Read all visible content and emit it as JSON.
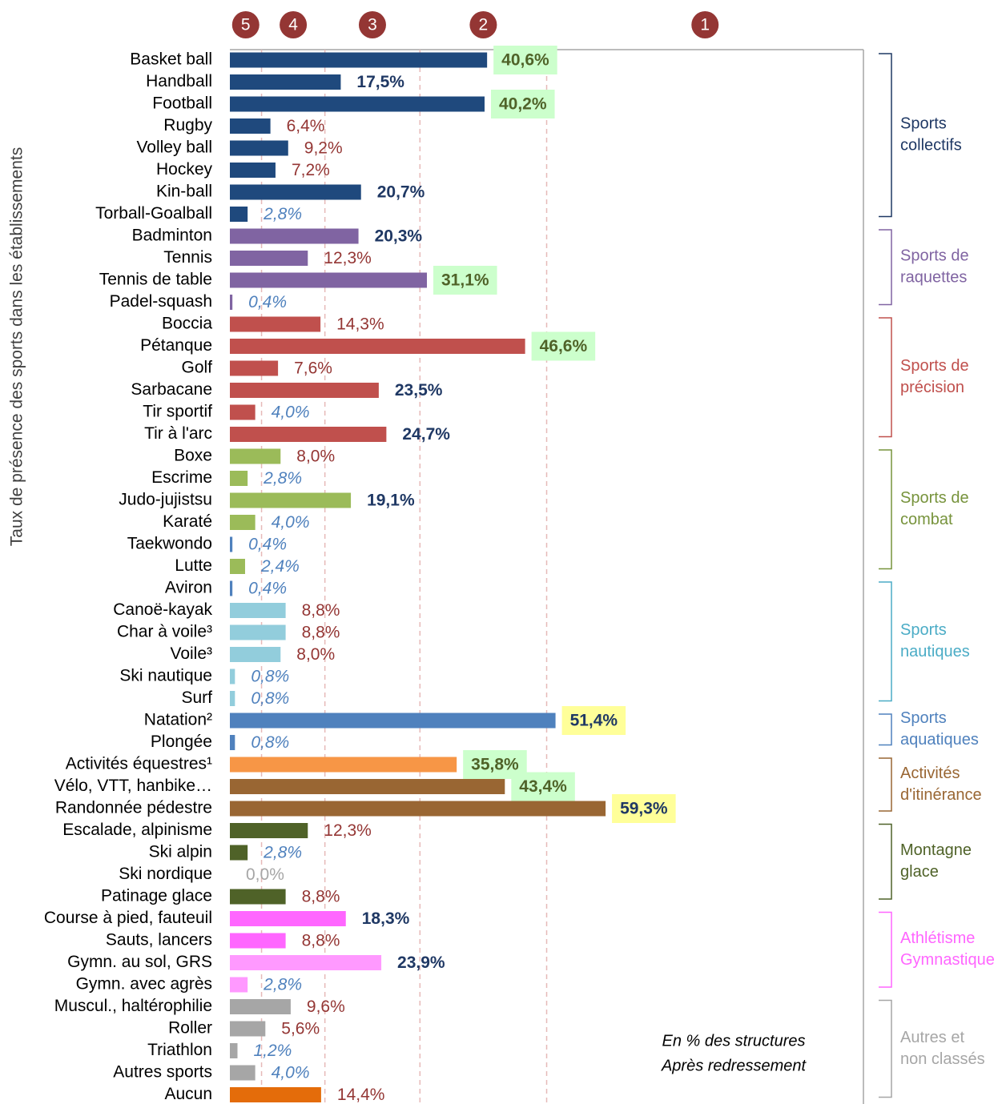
{
  "chart_data": {
    "type": "bar",
    "y_axis_label": "Taux de présence des sports dans les établissements",
    "note": [
      "En % des structures",
      "Après redressement"
    ],
    "xlim": [
      0,
      100
    ],
    "thresholds": [
      5,
      15,
      30,
      50
    ],
    "zones": [
      {
        "label": "5",
        "label_color": "#4f81bd",
        "italic": true,
        "bold": false
      },
      {
        "label": "4",
        "label_color": "#943634",
        "italic": false,
        "bold": false
      },
      {
        "label": "3",
        "label_color": "#1f3864",
        "italic": false,
        "bold": true
      },
      {
        "label": "2",
        "label_color": "#4f6228",
        "italic": false,
        "bold": true,
        "background": "#ccffcc"
      },
      {
        "label": "1",
        "label_color": "#1f3864",
        "italic": false,
        "bold": true,
        "background": "#ffff99"
      }
    ],
    "zero_label_color": "#a6a6a6",
    "categories": [
      "Basket ball",
      "Handball",
      "Football",
      "Rugby",
      "Volley ball",
      "Hockey",
      "Kin-ball",
      "Torball-Goalball",
      "Badminton",
      "Tennis",
      "Tennis de table",
      "Padel-squash",
      "Boccia",
      "Pétanque",
      "Golf",
      "Sarbacane",
      "Tir sportif",
      "Tir à l'arc",
      "Boxe",
      "Escrime",
      "Judo-jujistsu",
      "Karaté",
      "Taekwondo",
      "Lutte",
      "Aviron",
      "Canoë-kayak",
      "Char à voile³",
      "Voile³",
      "Ski nautique",
      "Surf",
      "Natation²",
      "Plongée",
      "Activités équestres¹",
      "Vélo, VTT, hanbike…",
      "Randonnée pédestre",
      "Escalade, alpinisme",
      "Ski alpin",
      "Ski nordique",
      "Patinage glace",
      "Course à pied, fauteuil",
      "Sauts, lancers",
      "Gymn. au sol, GRS",
      "Gymn. avec agrès",
      "Muscul., haltérophilie",
      "Roller",
      "Triathlon",
      "Autres sports",
      "Aucun"
    ],
    "values": [
      40.6,
      17.5,
      40.2,
      6.4,
      9.2,
      7.2,
      20.7,
      2.8,
      20.3,
      12.3,
      31.1,
      0.4,
      14.3,
      46.6,
      7.6,
      23.5,
      4.0,
      24.7,
      8.0,
      2.8,
      19.1,
      4.0,
      0.4,
      2.4,
      0.4,
      8.8,
      8.8,
      8.0,
      0.8,
      0.8,
      51.4,
      0.8,
      35.8,
      43.4,
      59.3,
      12.3,
      2.8,
      0.0,
      8.8,
      18.3,
      8.8,
      23.9,
      2.8,
      9.6,
      5.6,
      1.2,
      4.0,
      14.4
    ],
    "value_labels": [
      "40,6%",
      "17,5%",
      "40,2%",
      "6,4%",
      "9,2%",
      "7,2%",
      "20,7%",
      "2,8%",
      "20,3%",
      "12,3%",
      "31,1%",
      "0,4%",
      "14,3%",
      "46,6%",
      "7,6%",
      "23,5%",
      "4,0%",
      "24,7%",
      "8,0%",
      "2,8%",
      "19,1%",
      "4,0%",
      "0,4%",
      "2,4%",
      "0,4%",
      "8,8%",
      "8,8%",
      "8,0%",
      "0,8%",
      "0,8%",
      "51,4%",
      "0,8%",
      "35,8%",
      "43,4%",
      "59,3%",
      "12,3%",
      "2,8%",
      "0,0%",
      "8,8%",
      "18,3%",
      "8,8%",
      "23,9%",
      "2,8%",
      "9,6%",
      "5,6%",
      "1,2%",
      "4,0%",
      "14,4%"
    ],
    "colors": [
      "#1f497d",
      "#1f497d",
      "#1f497d",
      "#1f497d",
      "#1f497d",
      "#1f497d",
      "#1f497d",
      "#1f497d",
      "#8064a2",
      "#8064a2",
      "#8064a2",
      "#8064a2",
      "#c0504d",
      "#c0504d",
      "#c0504d",
      "#c0504d",
      "#c0504d",
      "#c0504d",
      "#9bbb59",
      "#9bbb59",
      "#9bbb59",
      "#9bbb59",
      "#4f81bd",
      "#9bbb59",
      "#4f81bd",
      "#92cddc",
      "#92cddc",
      "#92cddc",
      "#92cddc",
      "#92cddc",
      "#4f81bd",
      "#4f81bd",
      "#f79646",
      "#996633",
      "#996633",
      "#4f6228",
      "#4f6228",
      "#4f6228",
      "#4f6228",
      "#ff66ff",
      "#ff66ff",
      "#ff99ff",
      "#ff99ff",
      "#a6a6a6",
      "#a6a6a6",
      "#a6a6a6",
      "#a6a6a6",
      "#e46c0a"
    ],
    "groups": [
      {
        "label": [
          "Sports",
          "collectifs"
        ],
        "color": "#1f3864",
        "rows": [
          0,
          7
        ]
      },
      {
        "label": [
          "Sports de",
          "raquettes"
        ],
        "color": "#8064a2",
        "rows": [
          8,
          11
        ]
      },
      {
        "label": [
          "Sports de",
          "précision"
        ],
        "color": "#c0504d",
        "rows": [
          12,
          17
        ]
      },
      {
        "label": [
          "Sports de",
          "combat"
        ],
        "color": "#77933c",
        "rows": [
          18,
          23
        ]
      },
      {
        "label": [
          "Sports",
          "nautiques"
        ],
        "color": "#4bacc6",
        "rows": [
          24,
          29
        ]
      },
      {
        "label": [
          "Sports",
          "aquatiques"
        ],
        "color": "#4f81bd",
        "rows": [
          30,
          31
        ]
      },
      {
        "label": [
          "Activités",
          "d'itinérance"
        ],
        "color": "#996633",
        "rows": [
          32,
          34
        ]
      },
      {
        "label": [
          "Montagne",
          "glace"
        ],
        "color": "#4f6228",
        "rows": [
          35,
          38
        ]
      },
      {
        "label": [
          "Athlétisme",
          "Gymnastique"
        ],
        "color": "#ff66ff",
        "rows": [
          39,
          42
        ]
      },
      {
        "label": [
          "Autres et",
          "non classés"
        ],
        "color": "#a6a6a6",
        "rows": [
          43,
          47
        ]
      }
    ]
  }
}
